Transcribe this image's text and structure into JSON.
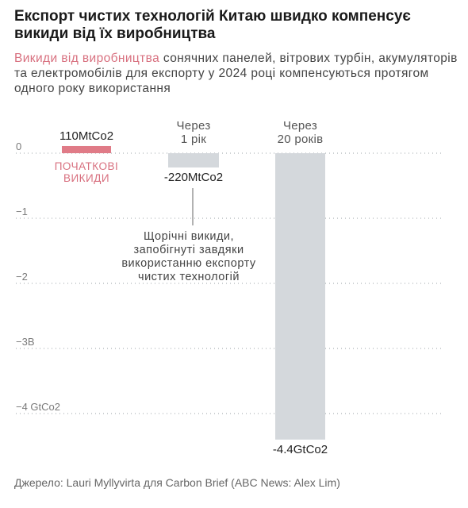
{
  "title": "Експорт чистих технологій Китаю швидко компенсує викиди від їх виробництва",
  "subtitle": {
    "highlight": "Викиди від виробництва",
    "rest": " сонячних панелей, вітрових турбін, акумуляторів та електромобілів для експорту у 2024 році компенсуються протягом одного року використання"
  },
  "source": "Джерело: Lauri Myllyvirta для Carbon Brief (ABC News: Alex Lim)",
  "colors": {
    "initial": "#e07b87",
    "offset": "#d4d8dc",
    "axis_text": "#7a7a7a",
    "grid": "#9aa0a6",
    "highlight_text": "#d8707f"
  },
  "chart_data": {
    "type": "bar",
    "unit": "GtCo2",
    "ylim": [
      -4.4,
      0
    ],
    "yticks": [
      {
        "value": 0,
        "label": "0"
      },
      {
        "value": -1,
        "label": "−1"
      },
      {
        "value": -2,
        "label": "−2"
      },
      {
        "value": -3,
        "label": "−3B"
      },
      {
        "value": -4,
        "label": "−4 GtCo2"
      }
    ],
    "bars": [
      {
        "header": [],
        "value": 0.11,
        "value_label": "110MtCo2",
        "caption": [
          "ПОЧАТКОВІ",
          "ВИКИДИ"
        ],
        "color_key": "initial"
      },
      {
        "header": [
          "Через",
          "1 рік"
        ],
        "value": -0.22,
        "value_label": "-220MtCo2",
        "caption": [],
        "color_key": "offset"
      },
      {
        "header": [
          "Через",
          "20 років"
        ],
        "value": -4.4,
        "value_label": "-4.4GtCo2",
        "caption": [],
        "color_key": "offset"
      }
    ],
    "annotation": [
      "Щорічні викиди,",
      "запобігнуті завдяки",
      "використанню експорту",
      "чистих технологій"
    ]
  }
}
